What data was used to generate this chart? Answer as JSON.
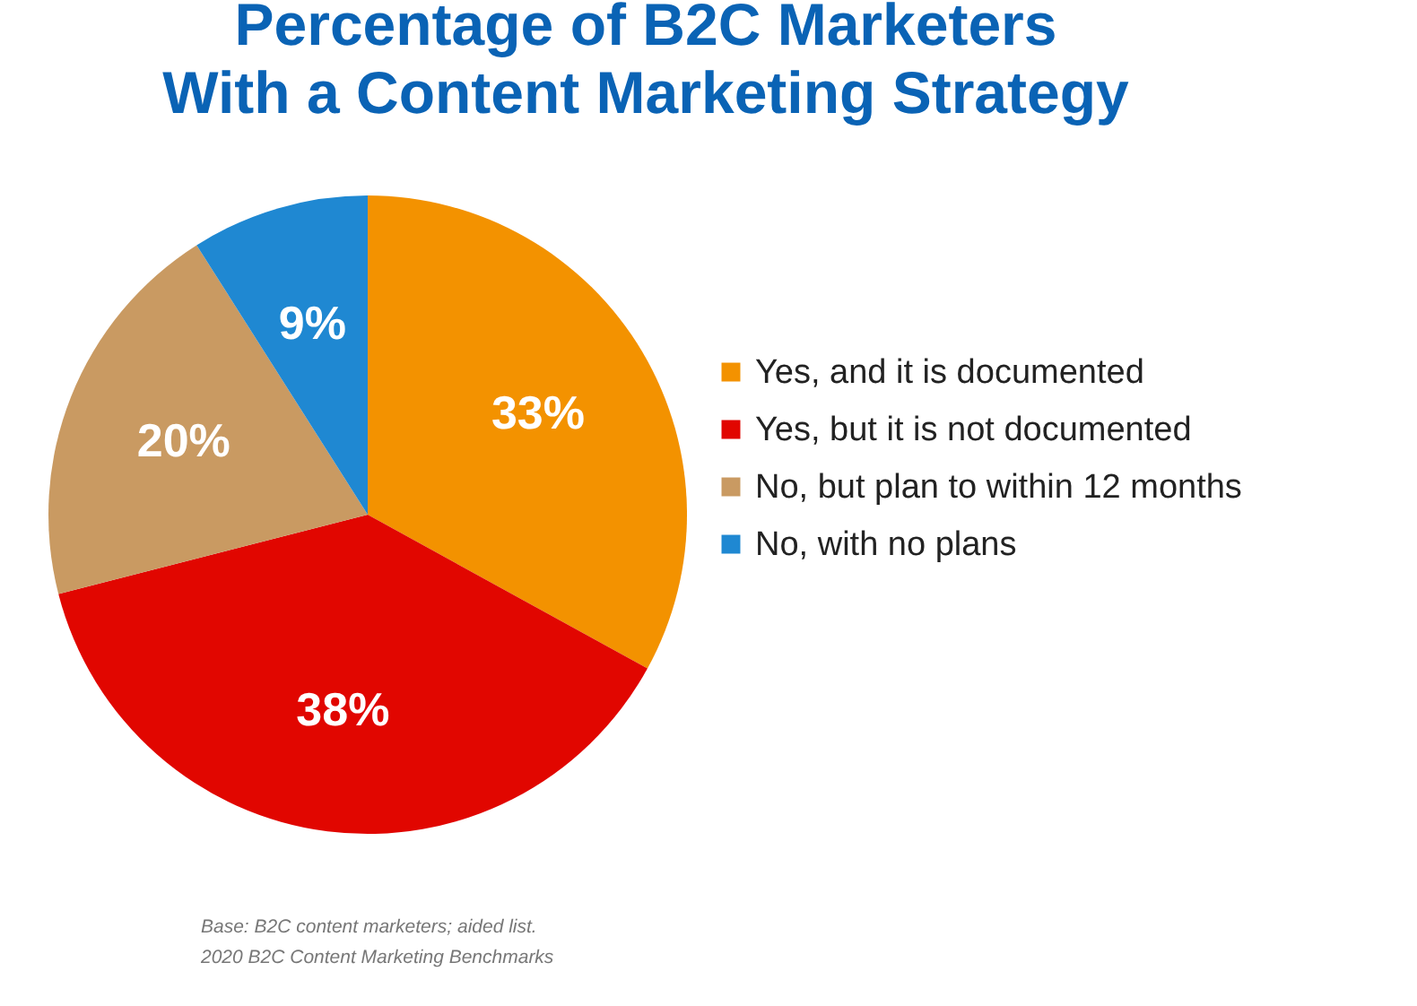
{
  "chart_data": {
    "type": "pie",
    "title": "Percentage of B2C Marketers\nWith a Content Marketing Strategy",
    "categories": [
      "Yes, and it is documented",
      "Yes, but it is not documented",
      "No, but plan to within 12 months",
      "No, with no plans"
    ],
    "values": [
      33,
      38,
      20,
      9
    ],
    "colors": [
      "#f39200",
      "#e10600",
      "#c99a62",
      "#1f88d2"
    ],
    "value_labels": [
      "33%",
      "38%",
      "20%",
      "9%"
    ],
    "legend": "right",
    "annotations": [
      "Base: B2C content marketers; aided list.",
      "2020 B2C Content Marketing Benchmarks"
    ]
  }
}
